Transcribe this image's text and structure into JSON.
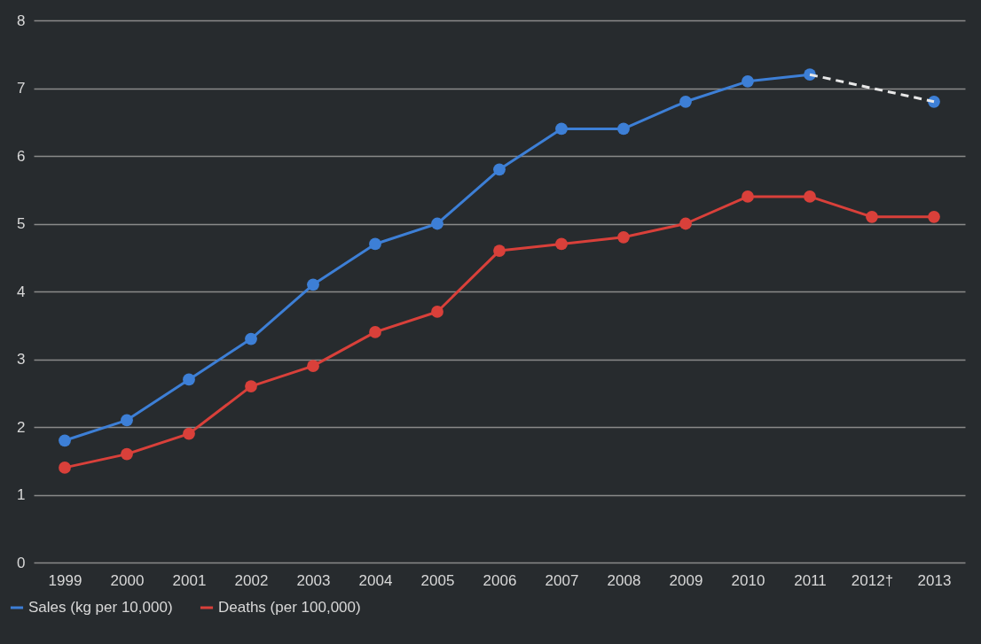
{
  "chart_data": {
    "type": "line",
    "categories": [
      "1999",
      "2000",
      "2001",
      "2002",
      "2003",
      "2004",
      "2005",
      "2006",
      "2007",
      "2008",
      "2009",
      "2010",
      "2011",
      "2012†",
      "2013"
    ],
    "series": [
      {
        "name": "Sales (kg per 10,000)",
        "color": "#3d7fd6",
        "values": [
          1.8,
          2.1,
          2.7,
          3.3,
          4.1,
          4.7,
          5.0,
          5.8,
          6.4,
          6.4,
          6.8,
          7.1,
          7.2,
          null,
          6.8
        ]
      },
      {
        "name": "Deaths (per 100,000)",
        "color": "#d9403a",
        "values": [
          1.4,
          1.6,
          1.9,
          2.6,
          2.9,
          3.4,
          3.7,
          4.6,
          4.7,
          4.8,
          5.0,
          5.4,
          5.4,
          5.1,
          5.1
        ]
      },
      {
        "color": "#e8e8e8",
        "values": [
          null,
          null,
          null,
          null,
          null,
          null,
          null,
          null,
          null,
          null,
          null,
          null,
          7.2,
          null,
          6.8
        ],
        "line_style": "dashed",
        "marker": "none"
      }
    ],
    "ylim": [
      0,
      8
    ],
    "yticks": [
      0,
      1,
      2,
      3,
      4,
      5,
      6,
      7,
      8
    ],
    "grid": "y",
    "legend": "bottom left",
    "marker": "circle",
    "line_style": "solid"
  }
}
